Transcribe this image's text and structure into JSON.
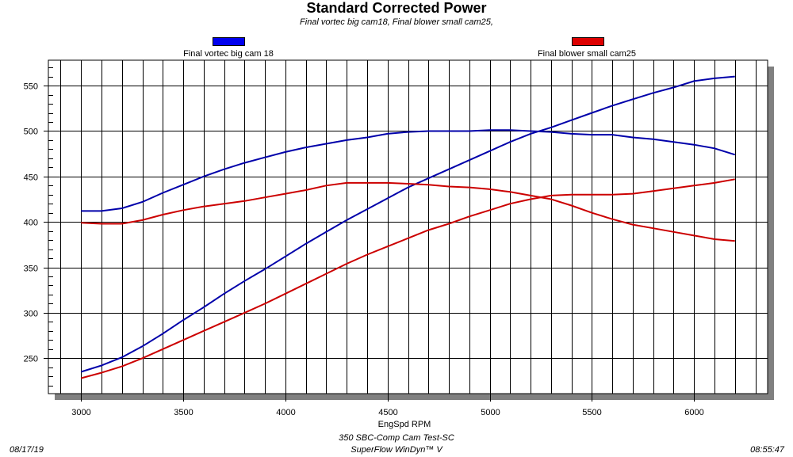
{
  "chart_data": {
    "type": "line",
    "title": "Standard Corrected Power",
    "subtitle": "Final vortec big cam18, Final blower small cam25,",
    "xlabel": "EngSpd  RPM",
    "ylabel": "",
    "xlim": [
      2840,
      6360
    ],
    "ylim": [
      211,
      578
    ],
    "x_ticks": [
      3000,
      3500,
      4000,
      4500,
      5000,
      5500,
      6000
    ],
    "y_ticks": [
      250,
      300,
      350,
      400,
      450,
      500,
      550
    ],
    "grid": true,
    "legend_position": "top",
    "legend": [
      {
        "name": "Final vortec big cam 18",
        "color": "#0000cc"
      },
      {
        "name": "Final blower small cam25",
        "color": "#cc0000"
      }
    ],
    "x": [
      3000,
      3100,
      3200,
      3300,
      3400,
      3500,
      3600,
      3700,
      3800,
      3900,
      4000,
      4100,
      4200,
      4300,
      4400,
      4500,
      4600,
      4700,
      4800,
      4900,
      5000,
      5100,
      5200,
      5300,
      5400,
      5500,
      5600,
      5700,
      5800,
      5900,
      6000,
      6100,
      6200
    ],
    "series": [
      {
        "name": "Final vortec big cam 18",
        "color": "#0000aa",
        "values": [
          235,
          242,
          251,
          263,
          277,
          292,
          306,
          321,
          335,
          348,
          362,
          376,
          389,
          402,
          414,
          426,
          438,
          448,
          458,
          468,
          478,
          488,
          497,
          504,
          512,
          520,
          528,
          535,
          542,
          548,
          555,
          558,
          560
        ]
      },
      {
        "name": "Final vortec big cam 18",
        "color": "#0000aa",
        "values": [
          412,
          412,
          415,
          422,
          432,
          441,
          450,
          458,
          465,
          471,
          477,
          482,
          486,
          490,
          493,
          497,
          499,
          500,
          500,
          500,
          501,
          501,
          500,
          499,
          497,
          496,
          496,
          493,
          491,
          488,
          485,
          481,
          474
        ]
      },
      {
        "name": "Final blower small cam25",
        "color": "#cc0000",
        "values": [
          228,
          234,
          241,
          250,
          260,
          270,
          280,
          290,
          300,
          310,
          321,
          332,
          343,
          354,
          364,
          373,
          382,
          391,
          398,
          406,
          413,
          420,
          425,
          429,
          430,
          430,
          430,
          431,
          434,
          437,
          440,
          443,
          447
        ]
      },
      {
        "name": "Final blower small cam25",
        "color": "#cc0000",
        "values": [
          399,
          398,
          398,
          402,
          408,
          413,
          417,
          420,
          423,
          427,
          431,
          435,
          440,
          443,
          443,
          443,
          442,
          441,
          439,
          438,
          436,
          433,
          429,
          425,
          418,
          410,
          403,
          397,
          393,
          389,
          385,
          381,
          379
        ]
      }
    ]
  },
  "footer": {
    "date": "08/17/19",
    "test_name": "350 SBC-Comp Cam Test-SC",
    "software": "SuperFlow WinDyn™ V",
    "time": "08:55:47"
  }
}
